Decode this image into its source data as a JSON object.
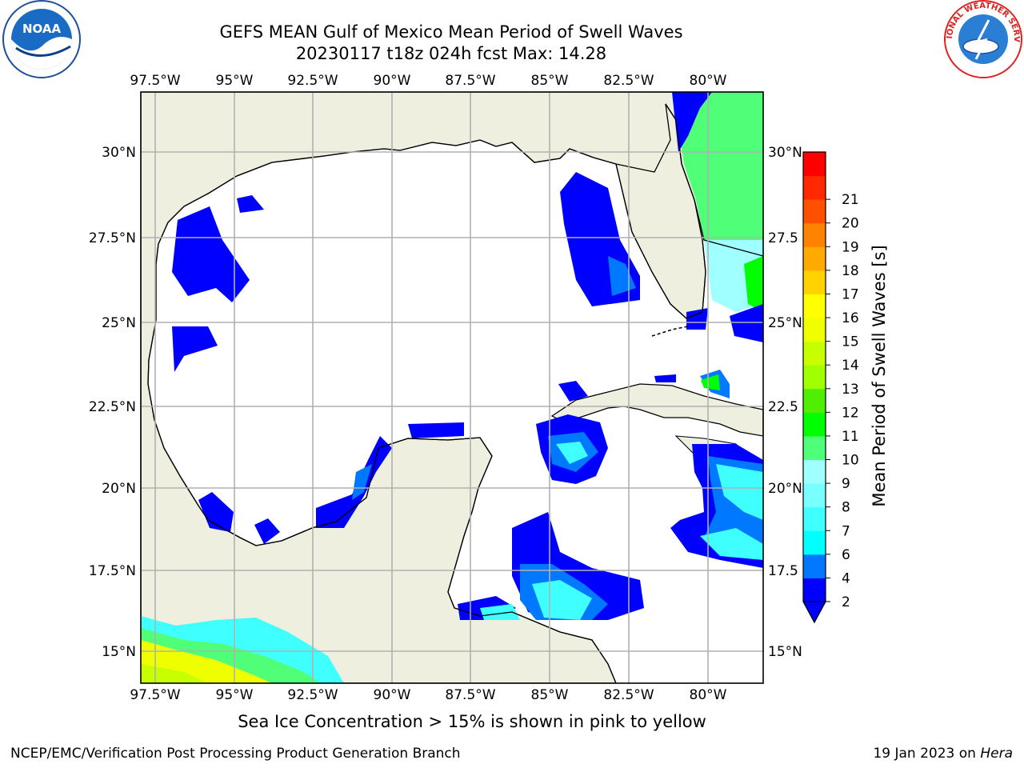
{
  "header": {
    "title_line1": "GEFS MEAN Gulf of Mexico Mean Period of Swell Waves",
    "title_line2": "20230117 t18z 024h fcst   Max: 14.28"
  },
  "logos": {
    "left": {
      "text": "NOAA",
      "icon": "noaa-logo"
    },
    "right": {
      "text": "NATIONAL WEATHER SERVICE",
      "icon": "nws-logo"
    }
  },
  "map": {
    "lon_labels": [
      "97.5°W",
      "95°W",
      "92.5°W",
      "90°W",
      "87.5°W",
      "85°W",
      "82.5°W",
      "80°W"
    ],
    "lat_labels_left": [
      "30°N",
      "27.5°N",
      "25°N",
      "22.5°N",
      "20°N",
      "17.5°N",
      "15°N"
    ],
    "lat_labels_right": [
      "30°N",
      "27.5",
      "25°N",
      "22.5",
      "20°N",
      "17.5",
      "15°N"
    ],
    "colors": {
      "land": "#efefdf",
      "coast": "#000000",
      "grid": "#b0b0b0",
      "ocean": "#ffffff"
    }
  },
  "colorbar": {
    "label": "Mean Period of Swell Waves [s]",
    "ticks": [
      "2",
      "4",
      "6",
      "7",
      "8",
      "9",
      "10",
      "11",
      "12",
      "13",
      "14",
      "15",
      "16",
      "17",
      "18",
      "19",
      "20",
      "21"
    ],
    "colors": [
      "#0000ff",
      "#0078ff",
      "#00ffff",
      "#40ffff",
      "#78ffff",
      "#a0ffff",
      "#50ff78",
      "#00ff00",
      "#50ee00",
      "#a0ff00",
      "#c8ff00",
      "#f0ff00",
      "#ffff00",
      "#ffd200",
      "#ffaa00",
      "#ff8200",
      "#ff5000",
      "#ff2800",
      "#ff0000"
    ],
    "extend_color": "#0000ff"
  },
  "footer": {
    "caption": "Sea Ice Concentration > 15% is shown in pink to yellow",
    "credit": "NCEP/EMC/Verification Post Processing Product Generation Branch",
    "date": "19 Jan 2023 on",
    "host": "Hera"
  }
}
